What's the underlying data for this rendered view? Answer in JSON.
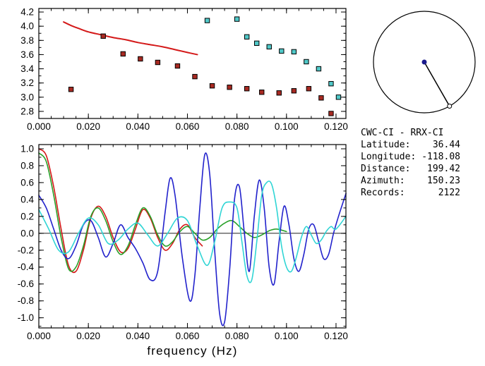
{
  "window": {
    "background": "#ffffff"
  },
  "info_panel": {
    "station_pair": "CWC-CI - RRX-CI",
    "rows": [
      {
        "label": "Latitude:",
        "value": "36.44"
      },
      {
        "label": "Longitude:",
        "value": "-118.08"
      },
      {
        "label": "Distance:",
        "value": "199.42"
      },
      {
        "label": "Azimuth:",
        "value": "150.23"
      },
      {
        "label": "Records:",
        "value": "2122"
      }
    ]
  },
  "azimuth_dial": {
    "azimuth_deg": 150.23,
    "center_dot_color": "#1a1a8c",
    "line_color": "#000000"
  },
  "chart_data": [
    {
      "id": "dispersion",
      "type": "scatter",
      "title": "",
      "xlabel": "",
      "ylabel": "",
      "xlim": [
        0,
        0.124
      ],
      "ylim": [
        2.7,
        4.25
      ],
      "x_tick_values": [
        0,
        0.02,
        0.04,
        0.06,
        0.08,
        0.1,
        0.12
      ],
      "x_tick_labels": [
        "0.000",
        "0.020",
        "0.040",
        "0.060",
        "0.080",
        "0.100",
        "0.120"
      ],
      "x_minor_step": 0.005,
      "y_tick_values": [
        2.8,
        3.0,
        3.2,
        3.4,
        3.6,
        3.8,
        4.0,
        4.2
      ],
      "y_tick_labels": [
        "2.8",
        "3.0",
        "3.2",
        "3.4",
        "3.6",
        "3.8",
        "4.0",
        "4.2"
      ],
      "y_minor_step": 0.1,
      "grid": false,
      "legend": "none",
      "series": [
        {
          "name": "reference-curve",
          "style": "line",
          "color": "#d41919",
          "width": 2,
          "points": [
            [
              0.01,
              4.06
            ],
            [
              0.013,
              4.01
            ],
            [
              0.016,
              3.97
            ],
            [
              0.02,
              3.92
            ],
            [
              0.025,
              3.88
            ],
            [
              0.03,
              3.84
            ],
            [
              0.035,
              3.81
            ],
            [
              0.04,
              3.77
            ],
            [
              0.045,
              3.74
            ],
            [
              0.05,
              3.71
            ],
            [
              0.055,
              3.67
            ],
            [
              0.06,
              3.63
            ],
            [
              0.064,
              3.6
            ]
          ]
        },
        {
          "name": "causal-dispersion-squares",
          "style": "squares",
          "color": "#a82a22",
          "points": [
            [
              0.013,
              3.11
            ],
            [
              0.026,
              3.86
            ],
            [
              0.034,
              3.61
            ],
            [
              0.041,
              3.54
            ],
            [
              0.048,
              3.49
            ],
            [
              0.056,
              3.44
            ],
            [
              0.063,
              3.29
            ],
            [
              0.07,
              3.16
            ],
            [
              0.077,
              3.14
            ],
            [
              0.084,
              3.12
            ],
            [
              0.09,
              3.07
            ],
            [
              0.097,
              3.06
            ],
            [
              0.103,
              3.09
            ],
            [
              0.109,
              3.12
            ],
            [
              0.114,
              2.99
            ],
            [
              0.118,
              2.77
            ]
          ]
        },
        {
          "name": "acausal-dispersion-squares",
          "style": "squares",
          "color": "#50c8c8",
          "points": [
            [
              0.068,
              4.08
            ],
            [
              0.08,
              4.1
            ],
            [
              0.084,
              3.85
            ],
            [
              0.088,
              3.76
            ],
            [
              0.093,
              3.71
            ],
            [
              0.098,
              3.65
            ],
            [
              0.103,
              3.64
            ],
            [
              0.108,
              3.5
            ],
            [
              0.113,
              3.4
            ],
            [
              0.118,
              3.19
            ],
            [
              0.121,
              3.0
            ]
          ]
        }
      ]
    },
    {
      "id": "waveforms",
      "type": "line",
      "title": "",
      "xlabel": "frequency (Hz)",
      "ylabel": "",
      "xlim": [
        0,
        0.124
      ],
      "ylim": [
        -1.12,
        1.05
      ],
      "x_tick_values": [
        0,
        0.02,
        0.04,
        0.06,
        0.08,
        0.1,
        0.12
      ],
      "x_tick_labels": [
        "0.000",
        "0.020",
        "0.040",
        "0.060",
        "0.080",
        "0.100",
        "0.120"
      ],
      "x_minor_step": 0.005,
      "y_tick_values": [
        1.0,
        0.8,
        0.6,
        0.4,
        0.2,
        0.0,
        -0.2,
        -0.4,
        -0.6,
        -0.8,
        -1.0
      ],
      "y_tick_labels": [
        "1.0",
        "0.8",
        "0.6",
        "0.4",
        "0.2",
        "0.0",
        "-0.2",
        "-0.4",
        "-0.6",
        "-0.8",
        "-1.0"
      ],
      "y_minor_step": 0.1,
      "zero_line": true,
      "grid": false,
      "legend": "none",
      "series": [
        {
          "name": "red-waveform",
          "style": "line",
          "color": "#d41919",
          "width": 1.6,
          "points": [
            [
              0.0,
              1.0
            ],
            [
              0.003,
              0.92
            ],
            [
              0.006,
              0.55
            ],
            [
              0.009,
              0.05
            ],
            [
              0.012,
              -0.38
            ],
            [
              0.015,
              -0.45
            ],
            [
              0.018,
              -0.2
            ],
            [
              0.021,
              0.18
            ],
            [
              0.024,
              0.32
            ],
            [
              0.027,
              0.2
            ],
            [
              0.03,
              -0.05
            ],
            [
              0.033,
              -0.22
            ],
            [
              0.036,
              -0.18
            ],
            [
              0.039,
              0.05
            ],
            [
              0.042,
              0.28
            ],
            [
              0.045,
              0.18
            ],
            [
              0.048,
              -0.05
            ],
            [
              0.051,
              -0.2
            ],
            [
              0.054,
              -0.12
            ],
            [
              0.057,
              0.05
            ],
            [
              0.06,
              0.1
            ],
            [
              0.063,
              -0.05
            ],
            [
              0.066,
              -0.15
            ]
          ]
        },
        {
          "name": "green-waveform",
          "style": "line",
          "color": "#28a028",
          "width": 1.6,
          "points": [
            [
              0.0,
              0.95
            ],
            [
              0.003,
              0.85
            ],
            [
              0.006,
              0.45
            ],
            [
              0.009,
              -0.05
            ],
            [
              0.012,
              -0.42
            ],
            [
              0.015,
              -0.4
            ],
            [
              0.018,
              -0.15
            ],
            [
              0.021,
              0.2
            ],
            [
              0.024,
              0.3
            ],
            [
              0.027,
              0.15
            ],
            [
              0.03,
              -0.1
            ],
            [
              0.033,
              -0.25
            ],
            [
              0.036,
              -0.15
            ],
            [
              0.039,
              0.1
            ],
            [
              0.042,
              0.3
            ],
            [
              0.045,
              0.2
            ],
            [
              0.048,
              -0.02
            ],
            [
              0.051,
              -0.15
            ],
            [
              0.054,
              -0.1
            ],
            [
              0.057,
              0.02
            ],
            [
              0.06,
              0.08
            ],
            [
              0.063,
              0.0
            ],
            [
              0.066,
              -0.08
            ],
            [
              0.069,
              -0.05
            ],
            [
              0.072,
              0.05
            ],
            [
              0.075,
              0.12
            ],
            [
              0.078,
              0.15
            ],
            [
              0.081,
              0.08
            ],
            [
              0.084,
              0.0
            ],
            [
              0.087,
              -0.05
            ],
            [
              0.09,
              -0.02
            ],
            [
              0.093,
              0.03
            ],
            [
              0.096,
              0.05
            ],
            [
              0.1,
              0.02
            ]
          ]
        },
        {
          "name": "blue-waveform",
          "style": "line",
          "color": "#2222cc",
          "width": 1.6,
          "points": [
            [
              0.0,
              0.45
            ],
            [
              0.003,
              0.3
            ],
            [
              0.006,
              0.05
            ],
            [
              0.009,
              -0.2
            ],
            [
              0.012,
              -0.3
            ],
            [
              0.015,
              -0.15
            ],
            [
              0.018,
              0.1
            ],
            [
              0.021,
              0.15
            ],
            [
              0.024,
              -0.05
            ],
            [
              0.027,
              -0.28
            ],
            [
              0.03,
              -0.12
            ],
            [
              0.033,
              0.1
            ],
            [
              0.036,
              -0.05
            ],
            [
              0.039,
              -0.18
            ],
            [
              0.042,
              -0.35
            ],
            [
              0.045,
              -0.55
            ],
            [
              0.048,
              -0.45
            ],
            [
              0.051,
              0.25
            ],
            [
              0.053,
              0.65
            ],
            [
              0.055,
              0.45
            ],
            [
              0.058,
              -0.3
            ],
            [
              0.061,
              -0.8
            ],
            [
              0.063,
              -0.5
            ],
            [
              0.065,
              0.3
            ],
            [
              0.067,
              0.93
            ],
            [
              0.069,
              0.7
            ],
            [
              0.071,
              -0.2
            ],
            [
              0.073,
              -0.95
            ],
            [
              0.075,
              -1.05
            ],
            [
              0.077,
              -0.45
            ],
            [
              0.079,
              0.4
            ],
            [
              0.081,
              0.55
            ],
            [
              0.083,
              0.0
            ],
            [
              0.085,
              -0.45
            ],
            [
              0.087,
              0.2
            ],
            [
              0.089,
              0.63
            ],
            [
              0.091,
              0.3
            ],
            [
              0.093,
              -0.4
            ],
            [
              0.095,
              -0.6
            ],
            [
              0.097,
              -0.1
            ],
            [
              0.099,
              0.32
            ],
            [
              0.101,
              0.1
            ],
            [
              0.103,
              -0.3
            ],
            [
              0.105,
              -0.45
            ],
            [
              0.107,
              -0.25
            ],
            [
              0.109,
              0.05
            ],
            [
              0.111,
              0.1
            ],
            [
              0.113,
              -0.1
            ],
            [
              0.115,
              -0.3
            ],
            [
              0.117,
              -0.25
            ],
            [
              0.119,
              0.0
            ],
            [
              0.121,
              0.2
            ],
            [
              0.124,
              0.47
            ]
          ]
        },
        {
          "name": "cyan-waveform",
          "style": "line",
          "color": "#30d5d5",
          "width": 1.6,
          "points": [
            [
              0.0,
              0.28
            ],
            [
              0.004,
              0.05
            ],
            [
              0.008,
              -0.2
            ],
            [
              0.012,
              -0.22
            ],
            [
              0.016,
              0.0
            ],
            [
              0.02,
              0.18
            ],
            [
              0.024,
              0.1
            ],
            [
              0.028,
              -0.12
            ],
            [
              0.032,
              -0.08
            ],
            [
              0.036,
              0.05
            ],
            [
              0.04,
              0.12
            ],
            [
              0.044,
              -0.02
            ],
            [
              0.048,
              -0.15
            ],
            [
              0.052,
              0.0
            ],
            [
              0.056,
              0.18
            ],
            [
              0.06,
              0.15
            ],
            [
              0.064,
              -0.15
            ],
            [
              0.068,
              -0.38
            ],
            [
              0.071,
              -0.1
            ],
            [
              0.074,
              0.3
            ],
            [
              0.077,
              0.37
            ],
            [
              0.08,
              0.3
            ],
            [
              0.082,
              -0.1
            ],
            [
              0.084,
              -0.5
            ],
            [
              0.086,
              -0.55
            ],
            [
              0.088,
              -0.1
            ],
            [
              0.09,
              0.45
            ],
            [
              0.092,
              0.6
            ],
            [
              0.094,
              0.58
            ],
            [
              0.096,
              0.3
            ],
            [
              0.098,
              -0.15
            ],
            [
              0.1,
              -0.4
            ],
            [
              0.102,
              -0.45
            ],
            [
              0.104,
              -0.28
            ],
            [
              0.106,
              -0.05
            ],
            [
              0.108,
              0.08
            ],
            [
              0.11,
              -0.02
            ],
            [
              0.112,
              -0.12
            ],
            [
              0.114,
              -0.08
            ],
            [
              0.116,
              0.02
            ],
            [
              0.118,
              0.08
            ],
            [
              0.12,
              0.05
            ],
            [
              0.124,
              0.2
            ]
          ]
        }
      ]
    }
  ]
}
